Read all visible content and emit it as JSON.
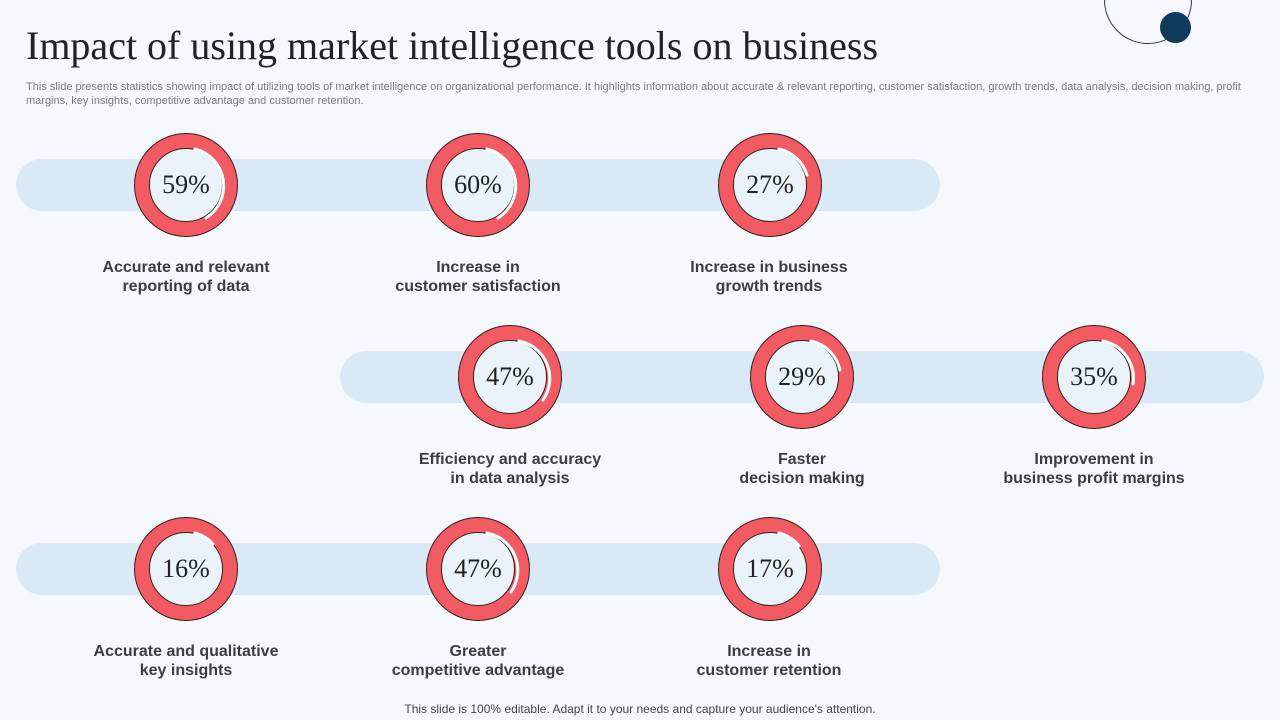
{
  "title": "Impact of using market intelligence tools on business",
  "subtitle": "This slide presents statistics showing impact of utilizing tools of market intelligence on organizational performance. It highlights information about accurate & relevant reporting, customer satisfaction, growth trends, data analysis, decision making, profit margins, key insights, competitive advantage and customer retention.",
  "colors": {
    "ring": "#f35b63",
    "band": "#d9eaf6",
    "accent_dot": "#0e3a5c"
  },
  "metrics": [
    {
      "value": "59%",
      "label_line1": "Accurate and relevant",
      "label_line2": "reporting of data"
    },
    {
      "value": "60%",
      "label_line1": "Increase in",
      "label_line2": "customer satisfaction"
    },
    {
      "value": "27%",
      "label_line1": "Increase in business",
      "label_line2": "growth trends"
    },
    {
      "value": "47%",
      "label_line1": "Efficiency and accuracy",
      "label_line2": "in data analysis"
    },
    {
      "value": "29%",
      "label_line1": "Faster",
      "label_line2": "decision making"
    },
    {
      "value": "35%",
      "label_line1": "Improvement in",
      "label_line2": "business profit margins"
    },
    {
      "value": "16%",
      "label_line1": "Accurate and qualitative",
      "label_line2": "key insights"
    },
    {
      "value": "47%",
      "label_line1": "Greater",
      "label_line2": "competitive advantage"
    },
    {
      "value": "17%",
      "label_line1": "Increase in",
      "label_line2": "customer retention"
    }
  ],
  "footer": "This slide is 100% editable. Adapt it to your needs and capture your audience's attention."
}
